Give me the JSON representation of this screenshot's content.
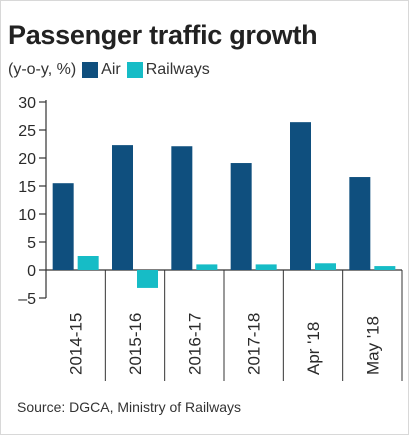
{
  "title": "Passenger traffic growth",
  "unit_label": "(y-o-y, %)",
  "colors": {
    "air": "#0f4f7e",
    "railways": "#16bcc6",
    "axis": "#333333"
  },
  "source": "Source: DGCA, Ministry of Railways",
  "chart_data": {
    "type": "bar",
    "title": "Passenger traffic growth",
    "ylabel": "(y-o-y, %)",
    "xlabel": "",
    "categories": [
      "2014-15",
      "2015-16",
      "2016-17",
      "2017-18",
      "Apr '18",
      "May '18"
    ],
    "series": [
      {
        "name": "Air",
        "values": [
          15.5,
          22.3,
          22.1,
          19.1,
          26.4,
          16.6
        ]
      },
      {
        "name": "Railways",
        "values": [
          2.5,
          -3.2,
          1.0,
          1.0,
          1.2,
          0.7
        ]
      }
    ],
    "ylim": [
      -5,
      30
    ],
    "yticks": [
      -5,
      0,
      5,
      10,
      15,
      20,
      25,
      30
    ],
    "legend_position": "top-left",
    "grid": false
  }
}
